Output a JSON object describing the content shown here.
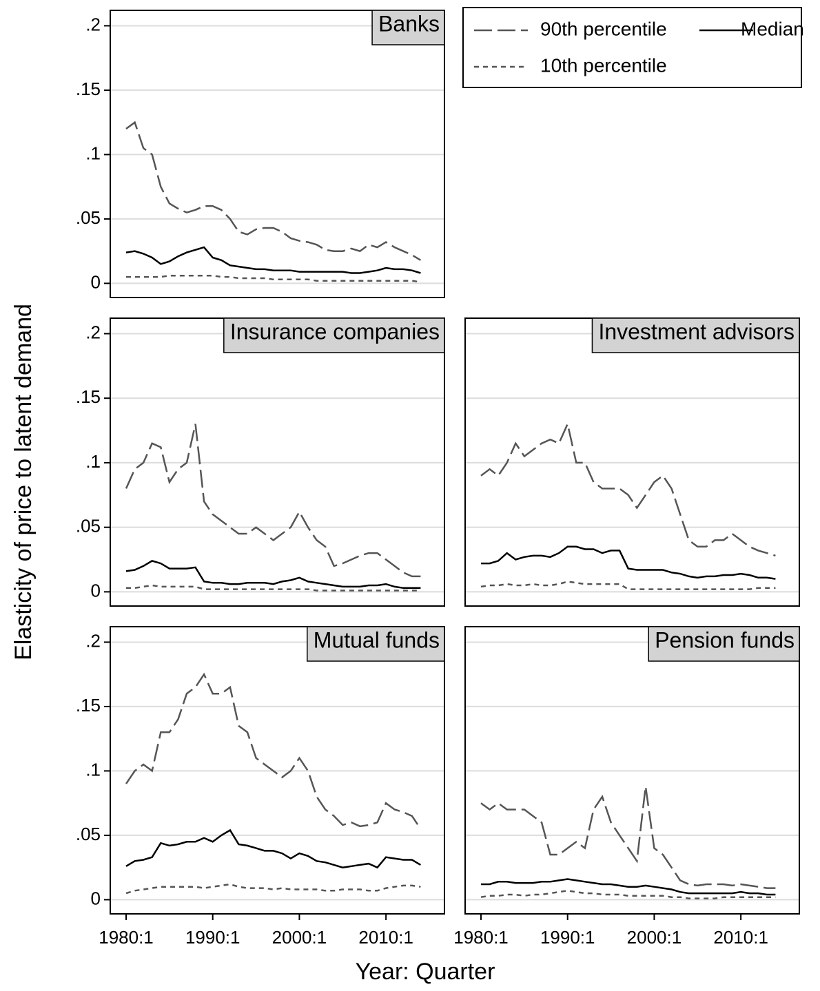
{
  "axes": {
    "xlabel": "Year: Quarter",
    "ylabel": "Elasticity of price to latent demand"
  },
  "chart_data": [
    {
      "type": "line",
      "title": "Banks",
      "x": [
        "1980:1",
        "1981:1",
        "1982:1",
        "1983:1",
        "1984:1",
        "1985:1",
        "1986:1",
        "1987:1",
        "1988:1",
        "1989:1",
        "1990:1",
        "1991:1",
        "1992:1",
        "1993:1",
        "1994:1",
        "1995:1",
        "1996:1",
        "1997:1",
        "1998:1",
        "1999:1",
        "2000:1",
        "2001:1",
        "2002:1",
        "2003:1",
        "2004:1",
        "2005:1",
        "2006:1",
        "2007:1",
        "2008:1",
        "2009:1",
        "2010:1",
        "2011:1",
        "2012:1",
        "2013:1",
        "2014:1"
      ],
      "series": [
        {
          "name": "90th percentile",
          "color": "#555555",
          "dash": "long",
          "values": [
            0.12,
            0.125,
            0.105,
            0.1,
            0.075,
            0.062,
            0.058,
            0.055,
            0.057,
            0.06,
            0.06,
            0.057,
            0.05,
            0.04,
            0.038,
            0.042,
            0.043,
            0.043,
            0.04,
            0.035,
            0.033,
            0.032,
            0.03,
            0.026,
            0.025,
            0.025,
            0.027,
            0.025,
            0.03,
            0.028,
            0.032,
            0.028,
            0.025,
            0.022,
            0.018
          ]
        },
        {
          "name": "Median",
          "color": "#000000",
          "dash": "solid",
          "values": [
            0.024,
            0.025,
            0.023,
            0.02,
            0.015,
            0.017,
            0.021,
            0.024,
            0.026,
            0.028,
            0.02,
            0.018,
            0.014,
            0.013,
            0.012,
            0.011,
            0.011,
            0.01,
            0.01,
            0.01,
            0.009,
            0.009,
            0.009,
            0.009,
            0.009,
            0.009,
            0.008,
            0.008,
            0.009,
            0.01,
            0.012,
            0.011,
            0.011,
            0.01,
            0.008
          ]
        },
        {
          "name": "10th percentile",
          "color": "#555555",
          "dash": "short",
          "values": [
            0.005,
            0.005,
            0.005,
            0.005,
            0.005,
            0.006,
            0.006,
            0.006,
            0.006,
            0.006,
            0.006,
            0.005,
            0.005,
            0.004,
            0.004,
            0.004,
            0.004,
            0.003,
            0.003,
            0.003,
            0.003,
            0.003,
            0.002,
            0.002,
            0.002,
            0.002,
            0.002,
            0.002,
            0.002,
            0.002,
            0.002,
            0.002,
            0.002,
            0.002,
            0.001
          ]
        }
      ],
      "ylim": [
        -0.011,
        0.212
      ],
      "yticks": [
        {
          "value": 0,
          "label": "0"
        },
        {
          "value": 0.05,
          "label": ".05"
        },
        {
          "value": 0.1,
          "label": ".1"
        },
        {
          "value": 0.15,
          "label": ".15"
        },
        {
          "value": 0.2,
          "label": ".2"
        }
      ],
      "grid": true
    },
    {
      "type": "line",
      "title": "Insurance companies",
      "x": [
        "1980:1",
        "1981:1",
        "1982:1",
        "1983:1",
        "1984:1",
        "1985:1",
        "1986:1",
        "1987:1",
        "1988:1",
        "1989:1",
        "1990:1",
        "1991:1",
        "1992:1",
        "1993:1",
        "1994:1",
        "1995:1",
        "1996:1",
        "1997:1",
        "1998:1",
        "1999:1",
        "2000:1",
        "2001:1",
        "2002:1",
        "2003:1",
        "2004:1",
        "2005:1",
        "2006:1",
        "2007:1",
        "2008:1",
        "2009:1",
        "2010:1",
        "2011:1",
        "2012:1",
        "2013:1",
        "2014:1"
      ],
      "series": [
        {
          "name": "90th percentile",
          "color": "#555555",
          "dash": "long",
          "values": [
            0.08,
            0.095,
            0.1,
            0.115,
            0.112,
            0.085,
            0.095,
            0.1,
            0.13,
            0.07,
            0.06,
            0.055,
            0.05,
            0.045,
            0.045,
            0.05,
            0.045,
            0.04,
            0.045,
            0.05,
            0.062,
            0.05,
            0.04,
            0.035,
            0.02,
            0.022,
            0.025,
            0.028,
            0.03,
            0.03,
            0.025,
            0.02,
            0.015,
            0.012,
            0.012
          ]
        },
        {
          "name": "Median",
          "color": "#000000",
          "dash": "solid",
          "values": [
            0.016,
            0.017,
            0.02,
            0.024,
            0.022,
            0.018,
            0.018,
            0.018,
            0.019,
            0.008,
            0.007,
            0.007,
            0.006,
            0.006,
            0.007,
            0.007,
            0.007,
            0.006,
            0.008,
            0.009,
            0.011,
            0.008,
            0.007,
            0.006,
            0.005,
            0.004,
            0.004,
            0.004,
            0.005,
            0.005,
            0.006,
            0.004,
            0.003,
            0.003,
            0.003
          ]
        },
        {
          "name": "10th percentile",
          "color": "#555555",
          "dash": "short",
          "values": [
            0.003,
            0.003,
            0.004,
            0.005,
            0.004,
            0.004,
            0.004,
            0.004,
            0.004,
            0.002,
            0.002,
            0.002,
            0.002,
            0.002,
            0.002,
            0.002,
            0.002,
            0.002,
            0.002,
            0.002,
            0.002,
            0.002,
            0.001,
            0.001,
            0.001,
            0.001,
            0.001,
            0.001,
            0.001,
            0.001,
            0.001,
            0.001,
            0.001,
            0.001,
            0.001
          ]
        }
      ],
      "ylim": [
        -0.011,
        0.212
      ],
      "yticks": [
        {
          "value": 0,
          "label": "0"
        },
        {
          "value": 0.05,
          "label": ".05"
        },
        {
          "value": 0.1,
          "label": ".1"
        },
        {
          "value": 0.15,
          "label": ".15"
        },
        {
          "value": 0.2,
          "label": ".2"
        }
      ],
      "grid": true
    },
    {
      "type": "line",
      "title": "Investment advisors",
      "x": [
        "1980:1",
        "1981:1",
        "1982:1",
        "1983:1",
        "1984:1",
        "1985:1",
        "1986:1",
        "1987:1",
        "1988:1",
        "1989:1",
        "1990:1",
        "1991:1",
        "1992:1",
        "1993:1",
        "1994:1",
        "1995:1",
        "1996:1",
        "1997:1",
        "1998:1",
        "1999:1",
        "2000:1",
        "2001:1",
        "2002:1",
        "2003:1",
        "2004:1",
        "2005:1",
        "2006:1",
        "2007:1",
        "2008:1",
        "2009:1",
        "2010:1",
        "2011:1",
        "2012:1",
        "2013:1",
        "2014:1"
      ],
      "series": [
        {
          "name": "90th percentile",
          "color": "#555555",
          "dash": "long",
          "values": [
            0.09,
            0.095,
            0.09,
            0.1,
            0.115,
            0.105,
            0.11,
            0.115,
            0.118,
            0.115,
            0.13,
            0.1,
            0.1,
            0.085,
            0.08,
            0.08,
            0.08,
            0.075,
            0.065,
            0.075,
            0.085,
            0.09,
            0.08,
            0.06,
            0.04,
            0.035,
            0.035,
            0.04,
            0.04,
            0.045,
            0.04,
            0.035,
            0.032,
            0.03,
            0.028
          ]
        },
        {
          "name": "Median",
          "color": "#000000",
          "dash": "solid",
          "values": [
            0.022,
            0.022,
            0.024,
            0.03,
            0.025,
            0.027,
            0.028,
            0.028,
            0.027,
            0.03,
            0.035,
            0.035,
            0.033,
            0.033,
            0.03,
            0.032,
            0.032,
            0.018,
            0.017,
            0.017,
            0.017,
            0.017,
            0.015,
            0.014,
            0.012,
            0.011,
            0.012,
            0.012,
            0.013,
            0.013,
            0.014,
            0.013,
            0.011,
            0.011,
            0.01
          ]
        },
        {
          "name": "10th percentile",
          "color": "#555555",
          "dash": "short",
          "values": [
            0.004,
            0.005,
            0.005,
            0.006,
            0.005,
            0.005,
            0.006,
            0.005,
            0.005,
            0.006,
            0.008,
            0.007,
            0.006,
            0.006,
            0.006,
            0.006,
            0.006,
            0.002,
            0.002,
            0.002,
            0.002,
            0.002,
            0.002,
            0.002,
            0.002,
            0.002,
            0.002,
            0.002,
            0.002,
            0.002,
            0.002,
            0.002,
            0.003,
            0.003,
            0.003
          ]
        }
      ],
      "ylim": [
        -0.011,
        0.212
      ],
      "grid": true
    },
    {
      "type": "line",
      "title": "Mutual funds",
      "x": [
        "1980:1",
        "1981:1",
        "1982:1",
        "1983:1",
        "1984:1",
        "1985:1",
        "1986:1",
        "1987:1",
        "1988:1",
        "1989:1",
        "1990:1",
        "1991:1",
        "1992:1",
        "1993:1",
        "1994:1",
        "1995:1",
        "1996:1",
        "1997:1",
        "1998:1",
        "1999:1",
        "2000:1",
        "2001:1",
        "2002:1",
        "2003:1",
        "2004:1",
        "2005:1",
        "2006:1",
        "2007:1",
        "2008:1",
        "2009:1",
        "2010:1",
        "2011:1",
        "2012:1",
        "2013:1",
        "2014:1"
      ],
      "series": [
        {
          "name": "90th percentile",
          "color": "#555555",
          "dash": "long",
          "values": [
            0.09,
            0.1,
            0.105,
            0.1,
            0.13,
            0.13,
            0.14,
            0.16,
            0.165,
            0.175,
            0.16,
            0.16,
            0.165,
            0.135,
            0.13,
            0.11,
            0.105,
            0.1,
            0.095,
            0.1,
            0.11,
            0.1,
            0.08,
            0.07,
            0.065,
            0.058,
            0.06,
            0.057,
            0.058,
            0.06,
            0.075,
            0.07,
            0.068,
            0.065,
            0.055
          ]
        },
        {
          "name": "Median",
          "color": "#000000",
          "dash": "solid",
          "values": [
            0.026,
            0.03,
            0.031,
            0.033,
            0.044,
            0.042,
            0.043,
            0.045,
            0.045,
            0.048,
            0.045,
            0.05,
            0.054,
            0.043,
            0.042,
            0.04,
            0.038,
            0.038,
            0.036,
            0.032,
            0.036,
            0.034,
            0.03,
            0.029,
            0.027,
            0.025,
            0.026,
            0.027,
            0.028,
            0.025,
            0.033,
            0.032,
            0.031,
            0.031,
            0.027
          ]
        },
        {
          "name": "10th percentile",
          "color": "#555555",
          "dash": "short",
          "values": [
            0.005,
            0.007,
            0.008,
            0.009,
            0.01,
            0.01,
            0.01,
            0.01,
            0.01,
            0.009,
            0.01,
            0.011,
            0.012,
            0.01,
            0.009,
            0.009,
            0.009,
            0.008,
            0.009,
            0.008,
            0.008,
            0.008,
            0.008,
            0.007,
            0.007,
            0.008,
            0.008,
            0.008,
            0.007,
            0.007,
            0.009,
            0.01,
            0.011,
            0.011,
            0.01
          ]
        }
      ],
      "ylim": [
        -0.011,
        0.212
      ],
      "yticks": [
        {
          "value": 0,
          "label": "0"
        },
        {
          "value": 0.05,
          "label": ".05"
        },
        {
          "value": 0.1,
          "label": ".1"
        },
        {
          "value": 0.15,
          "label": ".15"
        },
        {
          "value": 0.2,
          "label": ".2"
        }
      ],
      "xticks": [
        "1980:1",
        "1990:1",
        "2000:1",
        "2010:1"
      ],
      "grid": true
    },
    {
      "type": "line",
      "title": "Pension funds",
      "x": [
        "1980:1",
        "1981:1",
        "1982:1",
        "1983:1",
        "1984:1",
        "1985:1",
        "1986:1",
        "1987:1",
        "1988:1",
        "1989:1",
        "1990:1",
        "1991:1",
        "1992:1",
        "1993:1",
        "1994:1",
        "1995:1",
        "1996:1",
        "1997:1",
        "1998:1",
        "1999:1",
        "2000:1",
        "2001:1",
        "2002:1",
        "2003:1",
        "2004:1",
        "2005:1",
        "2006:1",
        "2007:1",
        "2008:1",
        "2009:1",
        "2010:1",
        "2011:1",
        "2012:1",
        "2013:1",
        "2014:1"
      ],
      "series": [
        {
          "name": "90th percentile",
          "color": "#555555",
          "dash": "long",
          "values": [
            0.075,
            0.07,
            0.075,
            0.07,
            0.07,
            0.07,
            0.065,
            0.06,
            0.035,
            0.035,
            0.04,
            0.045,
            0.04,
            0.07,
            0.08,
            0.06,
            0.05,
            0.04,
            0.03,
            0.088,
            0.04,
            0.035,
            0.025,
            0.015,
            0.012,
            0.011,
            0.012,
            0.012,
            0.012,
            0.011,
            0.012,
            0.011,
            0.01,
            0.009,
            0.009
          ]
        },
        {
          "name": "Median",
          "color": "#000000",
          "dash": "solid",
          "values": [
            0.012,
            0.012,
            0.014,
            0.014,
            0.013,
            0.013,
            0.013,
            0.014,
            0.014,
            0.015,
            0.016,
            0.015,
            0.014,
            0.013,
            0.012,
            0.012,
            0.011,
            0.01,
            0.01,
            0.011,
            0.01,
            0.009,
            0.008,
            0.006,
            0.005,
            0.005,
            0.005,
            0.005,
            0.005,
            0.005,
            0.006,
            0.005,
            0.005,
            0.004,
            0.004
          ]
        },
        {
          "name": "10th percentile",
          "color": "#555555",
          "dash": "short",
          "values": [
            0.002,
            0.003,
            0.003,
            0.004,
            0.004,
            0.003,
            0.004,
            0.004,
            0.005,
            0.006,
            0.007,
            0.006,
            0.005,
            0.005,
            0.004,
            0.004,
            0.004,
            0.003,
            0.003,
            0.003,
            0.003,
            0.003,
            0.002,
            0.002,
            0.001,
            0.001,
            0.001,
            0.001,
            0.002,
            0.002,
            0.002,
            0.002,
            0.002,
            0.002,
            0.002
          ]
        }
      ],
      "ylim": [
        -0.011,
        0.212
      ],
      "xticks": [
        "1980:1",
        "1990:1",
        "2000:1",
        "2010:1"
      ],
      "grid": true
    }
  ]
}
